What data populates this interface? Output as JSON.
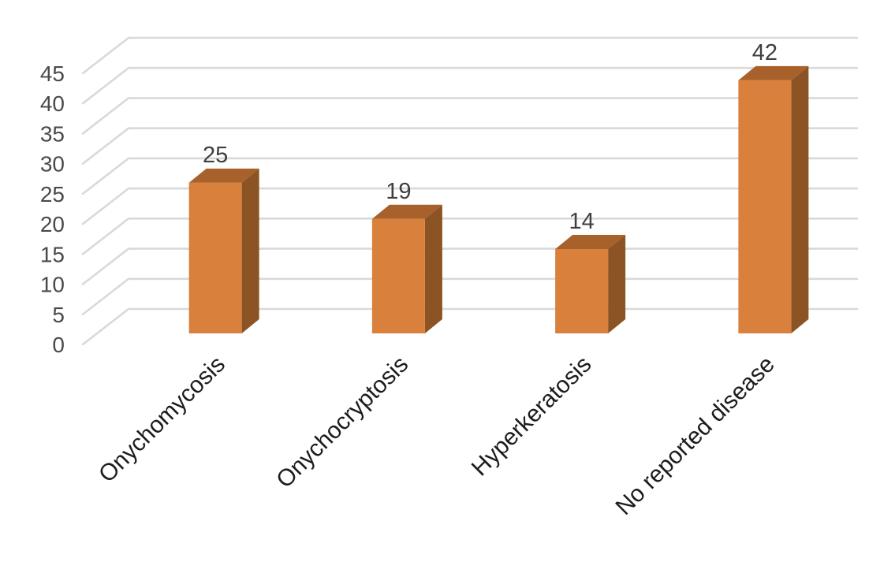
{
  "chart_data": {
    "type": "bar",
    "variant": "3d-column",
    "title": "",
    "xlabel": "",
    "ylabel": "",
    "categories": [
      "Onychomycosis",
      "Onychocryptosis",
      "Hyperkeratosis",
      "No reported disease"
    ],
    "values": [
      25,
      19,
      14,
      42
    ],
    "data_labels": [
      "25",
      "19",
      "14",
      "42"
    ],
    "y_ticks": [
      45,
      40,
      35,
      30,
      25,
      20,
      15,
      10,
      5,
      0
    ],
    "ylim": [
      0,
      45
    ],
    "grid": true,
    "legend": false,
    "background": "#FFFFFF",
    "colors": {
      "bar_front": "#D8803C",
      "bar_top": "#A8612B",
      "bar_side": "#8C5425",
      "gridline": "#D9D9D9",
      "tick_label": "#4A4A4A",
      "value_label": "#3F3F3F",
      "category_label": "#1C1C1C"
    }
  }
}
